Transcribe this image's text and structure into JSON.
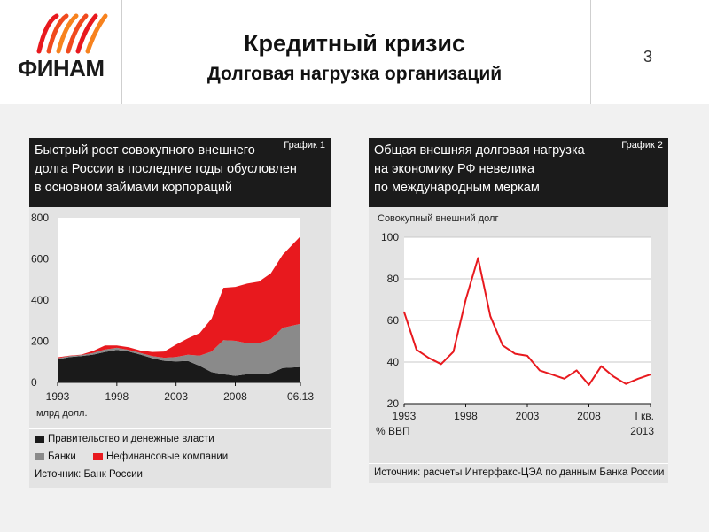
{
  "header": {
    "logo_text": "ФИНАМ",
    "title": "Кредитный кризис",
    "subtitle": "Долговая нагрузка организаций",
    "page_number": "3"
  },
  "charts": {
    "chart1": {
      "heading_lines": [
        "Быстрый рост совокупного внешнего",
        "долга России в последние годы обусловлен",
        "в основном займами корпораций"
      ],
      "tag": "График 1",
      "unit_label": "млрд долл.",
      "legend": [
        {
          "label": "Правительство и денежные власти",
          "color": "#1a1a1a"
        },
        {
          "label": "Банки",
          "color": "#8a8a8a"
        },
        {
          "label": "Нефинансовые компании",
          "color": "#e8191e"
        }
      ],
      "source": "Источник: Банк России"
    },
    "chart2": {
      "heading_lines": [
        "Общая внешняя долговая нагрузка",
        "на экономику РФ невелика",
        "по международным меркам"
      ],
      "tag": "График 2",
      "series_label": "Совокупный внешний долг",
      "unit_label": "% ВВП",
      "last_tick_line2": "2013",
      "source": "Источник: расчеты Интерфакс-ЦЭА по данным Банка России"
    }
  },
  "chart_data": [
    {
      "type": "area",
      "title": "Быстрый рост совокупного внешнего долга России в последние годы обусловлен в основном займами корпораций",
      "ylabel": "млрд долл.",
      "ylim": [
        0,
        800
      ],
      "yticks": [
        0,
        200,
        400,
        600,
        800
      ],
      "xticks": [
        "1993",
        "1998",
        "2003",
        "2008",
        "06.13"
      ],
      "x": [
        1993,
        1994,
        1995,
        1996,
        1997,
        1998,
        1999,
        2000,
        2001,
        2002,
        2003,
        2004,
        2005,
        2006,
        2007,
        2008,
        2009,
        2010,
        2011,
        2012,
        2013.5
      ],
      "stacked": true,
      "series": [
        {
          "name": "Правительство и денежные власти",
          "color": "#1a1a1a",
          "values": [
            112,
            123,
            128,
            135,
            148,
            158,
            150,
            135,
            118,
            105,
            102,
            104,
            80,
            50,
            40,
            32,
            40,
            40,
            45,
            70,
            75
          ]
        },
        {
          "name": "Банки",
          "color": "#8a8a8a",
          "values": [
            5,
            5,
            5,
            8,
            12,
            10,
            8,
            8,
            10,
            15,
            22,
            30,
            50,
            100,
            165,
            170,
            150,
            150,
            165,
            195,
            210
          ]
        },
        {
          "name": "Нефинансовые компании",
          "color": "#e8191e",
          "values": [
            5,
            2,
            2,
            10,
            20,
            12,
            13,
            12,
            20,
            30,
            60,
            80,
            110,
            160,
            255,
            262,
            290,
            300,
            320,
            355,
            425
          ]
        }
      ],
      "grid": false,
      "legend_position": "bottom"
    },
    {
      "type": "line",
      "title": "Общая внешняя долговая нагрузка на экономику РФ невелика по международным меркам",
      "ylabel": "% ВВП",
      "ylim": [
        20,
        100
      ],
      "yticks": [
        20,
        40,
        60,
        80,
        100
      ],
      "xticks": [
        "1993",
        "1998",
        "2003",
        "2008",
        "I кв. 2013"
      ],
      "x": [
        "1993",
        "1994",
        "1995",
        "1996",
        "1997",
        "1998",
        "1999",
        "2000",
        "2001",
        "2002",
        "2003",
        "2004",
        "2005",
        "2006",
        "2007",
        "2008",
        "2009",
        "2010",
        "2011",
        "2012",
        "I кв. 2013"
      ],
      "series": [
        {
          "name": "Совокупный внешний долг",
          "color": "#e8191e",
          "values": [
            64,
            46,
            42,
            39,
            45,
            70,
            90,
            62,
            48,
            44,
            43,
            36,
            34,
            32,
            36,
            29,
            38,
            33,
            29.5,
            32,
            34
          ]
        }
      ],
      "grid": true,
      "legend_position": "none"
    }
  ]
}
